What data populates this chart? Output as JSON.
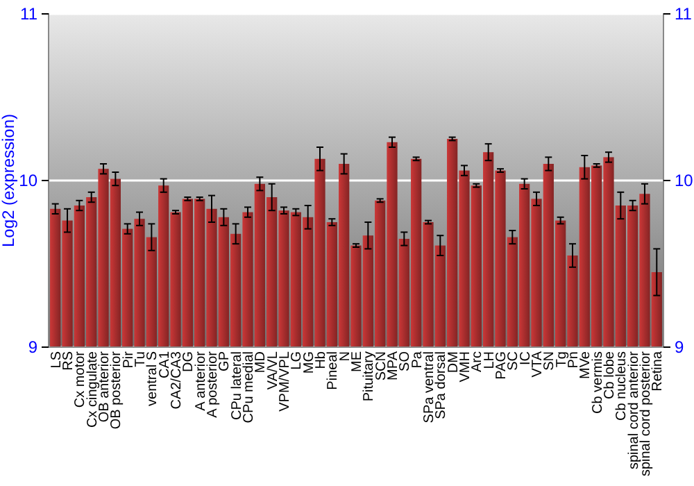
{
  "chart_data": {
    "type": "bar",
    "ylabel": "Log2 (expression)",
    "categories": [
      "LS",
      "RS",
      "Cx motor",
      "Cx cingulate",
      "OB anterior",
      "OB posterior",
      "Pir",
      "Tu",
      "ventral S",
      "CA1",
      "CA2/CA3",
      "DG",
      "A anterior",
      "A posterior",
      "GP",
      "CPu lateral",
      "CPu medial",
      "MD",
      "VA/VL",
      "VPM/VPL",
      "LG",
      "MG",
      "Hb",
      "Pineal",
      "N",
      "ME",
      "Pituitary",
      "SCN",
      "MPA",
      "SO",
      "Pa",
      "SPa ventral",
      "SPa dorsal",
      "DM",
      "VMH",
      "Arc",
      "LH",
      "PAG",
      "SC",
      "IC",
      "VTA",
      "SN",
      "Tg",
      "Pn",
      "MVe",
      "Cb vermis",
      "Cb lobe",
      "Cb nucleus",
      "spinal cord anterior",
      "spinal cord posterior",
      "Retina"
    ],
    "values": [
      9.83,
      9.76,
      9.85,
      9.9,
      10.07,
      10.01,
      9.71,
      9.77,
      9.66,
      9.97,
      9.81,
      9.89,
      9.89,
      9.83,
      9.78,
      9.68,
      9.81,
      9.98,
      9.9,
      9.82,
      9.81,
      9.78,
      10.13,
      9.75,
      10.1,
      9.61,
      9.67,
      9.88,
      10.23,
      9.65,
      10.13,
      9.75,
      9.61,
      10.25,
      10.06,
      9.97,
      10.17,
      10.06,
      9.66,
      9.98,
      9.89,
      10.1,
      9.76,
      9.55,
      10.08,
      10.09,
      10.14,
      9.85,
      9.85,
      9.92,
      9.45
    ],
    "errors": [
      0.03,
      0.07,
      0.03,
      0.03,
      0.03,
      0.04,
      0.03,
      0.04,
      0.08,
      0.04,
      0.01,
      0.01,
      0.01,
      0.08,
      0.05,
      0.06,
      0.03,
      0.04,
      0.08,
      0.02,
      0.02,
      0.07,
      0.07,
      0.02,
      0.06,
      0.01,
      0.08,
      0.01,
      0.03,
      0.04,
      0.01,
      0.01,
      0.06,
      0.01,
      0.03,
      0.01,
      0.05,
      0.01,
      0.04,
      0.03,
      0.04,
      0.04,
      0.02,
      0.07,
      0.07,
      0.01,
      0.03,
      0.08,
      0.03,
      0.06,
      0.14
    ],
    "color": "#b03030",
    "ylim": [
      9,
      11
    ],
    "yticks": [
      9,
      10,
      11
    ],
    "y2lim": [
      9,
      11
    ],
    "y2ticks": [
      9,
      10,
      11
    ],
    "grid": "y"
  }
}
